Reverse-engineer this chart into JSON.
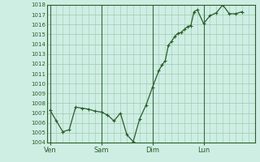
{
  "background_color": "#ceeee4",
  "plot_bg_color": "#ceeee4",
  "line_color": "#2a5e2a",
  "marker_color": "#2a5e2a",
  "grid_color": "#9dc9b0",
  "vline_color": "#3a6e3a",
  "axis_label_color": "#2a5e2a",
  "spine_color": "#2a5e2a",
  "ylim": [
    1004,
    1018
  ],
  "ytick_step": 1,
  "yticks": [
    1004,
    1005,
    1006,
    1007,
    1008,
    1009,
    1010,
    1011,
    1012,
    1013,
    1014,
    1015,
    1016,
    1017,
    1018
  ],
  "day_labels": [
    "Ven",
    "Sam",
    "Dim",
    "Lun"
  ],
  "day_positions": [
    0,
    16,
    32,
    48
  ],
  "xlim": [
    -1,
    64
  ],
  "x": [
    0,
    2,
    4,
    6,
    8,
    10,
    12,
    14,
    16,
    18,
    20,
    22,
    24,
    26,
    28,
    30,
    32,
    34,
    35,
    36,
    37,
    38,
    39,
    40,
    41,
    42,
    43,
    44,
    45,
    46,
    48,
    50,
    52,
    54,
    56,
    58,
    60
  ],
  "y": [
    1007.3,
    1006.2,
    1005.1,
    1005.3,
    1007.6,
    1007.5,
    1007.4,
    1007.2,
    1007.1,
    1006.8,
    1006.2,
    1007.0,
    1004.8,
    1004.1,
    1006.4,
    1007.8,
    1009.6,
    1011.3,
    1011.9,
    1012.3,
    1013.9,
    1014.3,
    1014.8,
    1015.1,
    1015.2,
    1015.5,
    1015.8,
    1015.9,
    1017.3,
    1017.5,
    1016.1,
    1016.9,
    1017.2,
    1018.0,
    1017.1,
    1017.1,
    1017.3
  ]
}
